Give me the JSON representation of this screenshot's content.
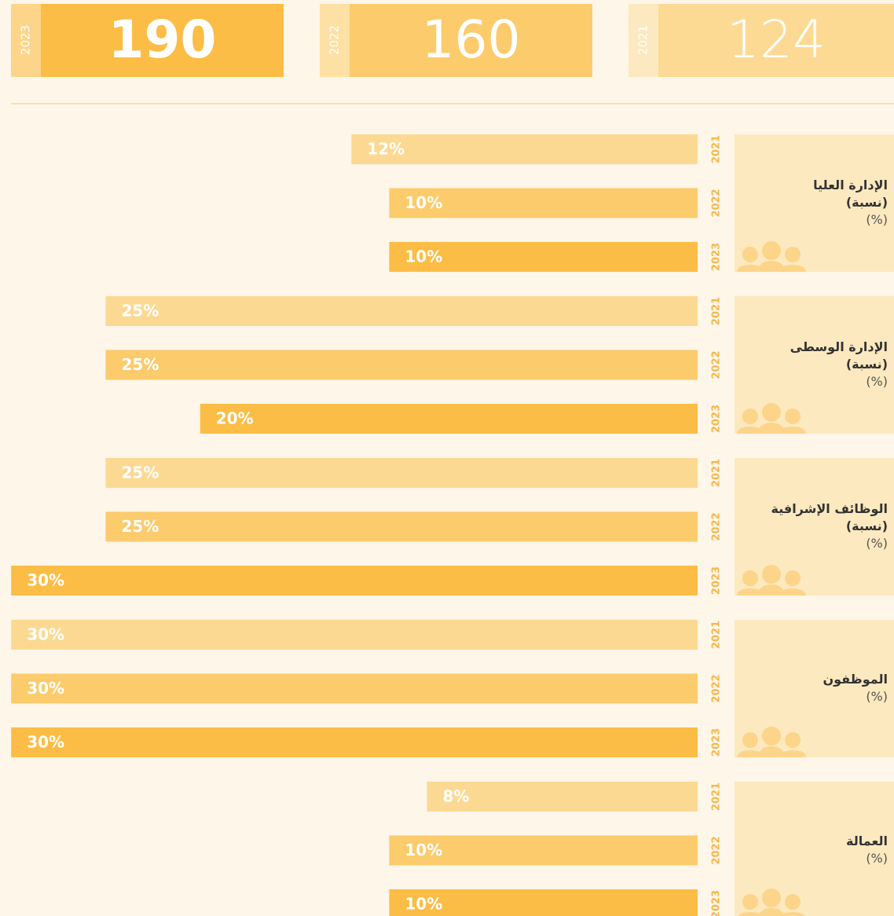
{
  "summary": {
    "years": [
      "2023",
      "2022",
      "2021"
    ],
    "values": [
      190,
      160,
      124
    ]
  },
  "chart_data": {
    "type": "bar",
    "orientation": "horizontal",
    "categories": [
      "الإدارة العليا",
      "الإدارة الوسطى",
      "الوظائف الإشرافية",
      "الموظفون",
      "العمالة"
    ],
    "category_notes": [
      "(نسبة)",
      "(نسبة)",
      "(نسبة)",
      null,
      null
    ],
    "unit": "(%)",
    "series": [
      {
        "name": "2021",
        "color": "#fcd993",
        "values": [
          12,
          25,
          25,
          30,
          8
        ],
        "value_labels": [
          "12%",
          "25%",
          "25%",
          "30%",
          "8%"
        ]
      },
      {
        "name": "2022",
        "color": "#fbcb6c",
        "values": [
          10,
          25,
          25,
          30,
          10
        ],
        "value_labels": [
          "10%",
          "25%",
          "25%",
          "30%",
          "10%"
        ]
      },
      {
        "name": "2023",
        "color": "#fbbd45",
        "values": [
          10,
          20,
          30,
          30,
          10
        ],
        "value_labels": [
          "10%",
          "20%",
          "30%",
          "30%",
          "10%"
        ]
      }
    ]
  }
}
